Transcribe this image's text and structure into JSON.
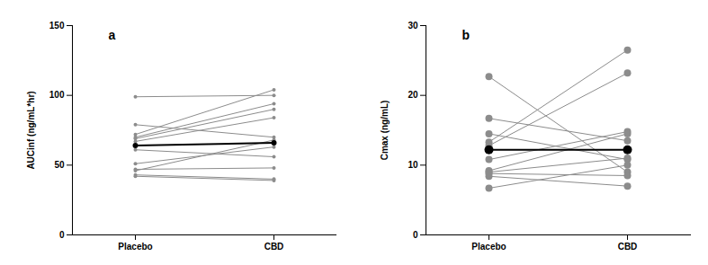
{
  "chart_data": [
    {
      "type": "line",
      "title": "a",
      "y_label": "AUCinf (ng/mL*hr)",
      "categories": [
        "Placebo",
        "CBD"
      ],
      "ylim": [
        0,
        150
      ],
      "yticks": [
        0,
        50,
        100,
        150
      ],
      "marker": "point",
      "series": [
        {
          "color": "#8c8c8c",
          "values": [
            99,
            100
          ]
        },
        {
          "color": "#8c8c8c",
          "values": [
            79,
            70
          ]
        },
        {
          "color": "#8c8c8c",
          "values": [
            72,
            104
          ]
        },
        {
          "color": "#8c8c8c",
          "values": [
            70,
            94
          ]
        },
        {
          "color": "#8c8c8c",
          "values": [
            69,
            90
          ]
        },
        {
          "color": "#8c8c8c",
          "values": [
            67,
            84
          ]
        },
        {
          "color": "#8c8c8c",
          "values": [
            61,
            56
          ]
        },
        {
          "color": "#8c8c8c",
          "values": [
            51,
            63
          ]
        },
        {
          "color": "#8c8c8c",
          "values": [
            47,
            48
          ]
        },
        {
          "color": "#8c8c8c",
          "values": [
            46,
            68
          ]
        },
        {
          "color": "#8c8c8c",
          "values": [
            43,
            40
          ]
        },
        {
          "color": "#8c8c8c",
          "values": [
            42,
            39
          ]
        },
        {
          "color": "#000000",
          "values": [
            64,
            66
          ]
        }
      ]
    },
    {
      "type": "line",
      "title": "b",
      "y_label": "Cmax (ng/mL)",
      "categories": [
        "Placebo",
        "CBD"
      ],
      "ylim": [
        0,
        30
      ],
      "yticks": [
        0,
        10,
        20,
        30
      ],
      "marker": "circle",
      "series": [
        {
          "color": "#8c8c8c",
          "values": [
            22.7,
            9.0
          ]
        },
        {
          "color": "#8c8c8c",
          "values": [
            16.7,
            13.5
          ]
        },
        {
          "color": "#8c8c8c",
          "values": [
            14.5,
            10.8
          ]
        },
        {
          "color": "#8c8c8c",
          "values": [
            13.3,
            26.5
          ]
        },
        {
          "color": "#8c8c8c",
          "values": [
            12.8,
            23.2
          ]
        },
        {
          "color": "#8c8c8c",
          "values": [
            10.8,
            14.8
          ]
        },
        {
          "color": "#8c8c8c",
          "values": [
            9.2,
            14.5
          ]
        },
        {
          "color": "#8c8c8c",
          "values": [
            9.0,
            11.0
          ]
        },
        {
          "color": "#8c8c8c",
          "values": [
            8.4,
            7.0
          ]
        },
        {
          "color": "#8c8c8c",
          "values": [
            8.8,
            8.5
          ]
        },
        {
          "color": "#8c8c8c",
          "values": [
            6.7,
            10.0
          ]
        },
        {
          "color": "#000000",
          "values": [
            12.2,
            12.2
          ]
        }
      ]
    }
  ]
}
